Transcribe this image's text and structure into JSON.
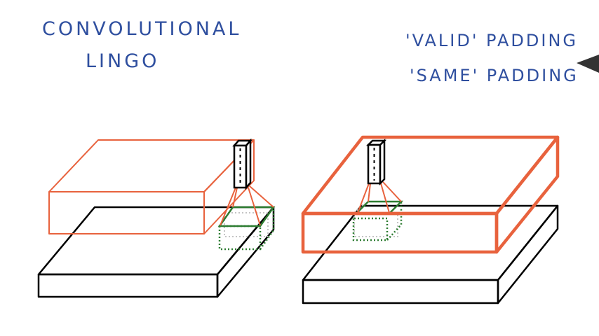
{
  "text": {
    "title_line1": "CONVOLUTIONAL",
    "title_line2": "LINGO",
    "valid_padding": "'VALID' PADDING",
    "same_padding": "'SAME' PADDING"
  },
  "colors": {
    "text": "#2f4f9f",
    "output_volume": "#e8623d",
    "input_volume": "#000000",
    "patch": "#2e7d32",
    "patch_shadow": "#bdbdbd"
  }
}
